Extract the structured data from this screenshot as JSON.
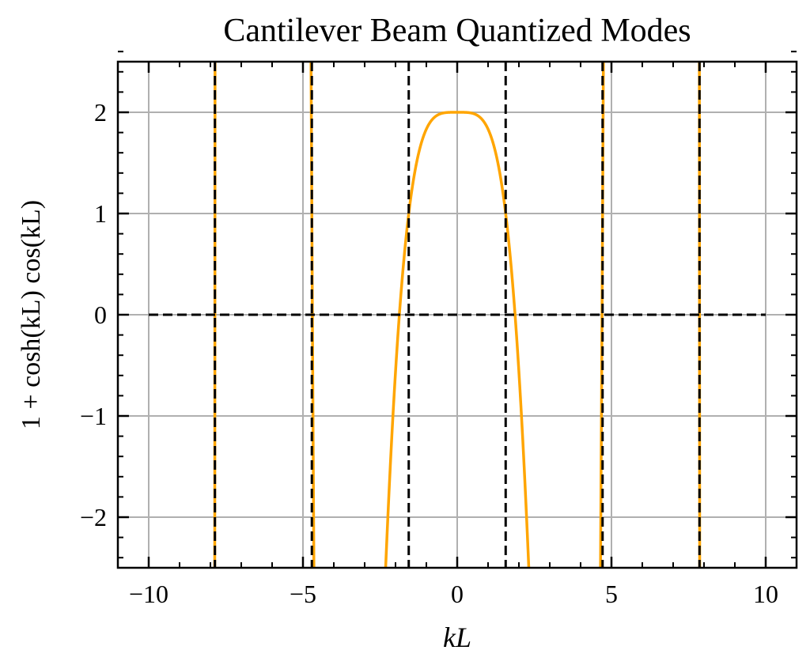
{
  "chart_data": {
    "type": "line",
    "title": "Cantilever Beam Quantized Modes",
    "xlabel": "kL",
    "ylabel": "1 + cosh(kL) cos(kL)",
    "xlim": [
      -11,
      11
    ],
    "ylim": [
      -2.5,
      2.5
    ],
    "xticks": [
      -10,
      -5,
      0,
      5,
      10
    ],
    "xtick_labels": [
      "−10",
      "−5",
      "0",
      "5",
      "10"
    ],
    "yticks": [
      -2,
      -1,
      0,
      1,
      2
    ],
    "ytick_labels": [
      "−2",
      "−1",
      "0",
      "1",
      "2"
    ],
    "x_minor_step": 1,
    "y_minor_step": 0.2,
    "grid": true,
    "series": [
      {
        "name": "1 + cosh(kL) cos(kL)",
        "function": "1+cosh(x)*cos(x)",
        "x_range": [
          -10,
          10
        ],
        "color": "#FFA500"
      }
    ],
    "hlines": [
      {
        "y": 0,
        "x_range": [
          -10,
          10
        ],
        "style": "dashed",
        "color": "#000000"
      }
    ],
    "vlines": [
      {
        "x": -7.854,
        "style": "dashed",
        "color": "#000000"
      },
      {
        "x": -4.712,
        "style": "dashed",
        "color": "#000000"
      },
      {
        "x": -1.571,
        "style": "dashed",
        "color": "#000000"
      },
      {
        "x": 1.571,
        "style": "dashed",
        "color": "#000000"
      },
      {
        "x": 4.712,
        "style": "dashed",
        "color": "#000000"
      },
      {
        "x": 7.854,
        "style": "dashed",
        "color": "#000000"
      }
    ]
  }
}
